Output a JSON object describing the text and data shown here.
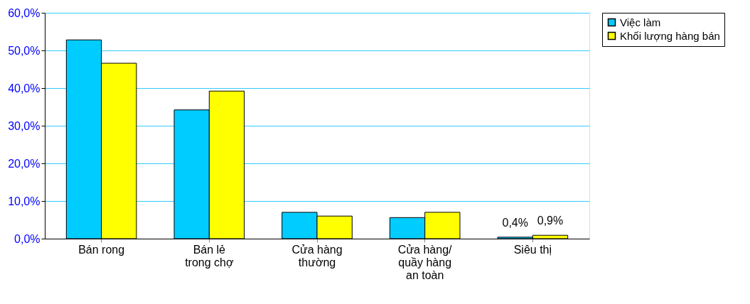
{
  "chart_data": {
    "type": "bar",
    "categories": [
      "Bán rong",
      "Bán lẻ\ntrong chợ",
      "Cửa hàng\nthường",
      "Cửa hàng/\nquầy hàng\nan toàn",
      "Siêu thị"
    ],
    "series": [
      {
        "name": "Việc làm",
        "color": "#00ccff",
        "values": [
          52.8,
          34.2,
          7.0,
          5.6,
          0.4
        ],
        "value_labels": [
          null,
          null,
          null,
          null,
          "0,4%"
        ]
      },
      {
        "name": "Khối lượng hàng bán",
        "color": "#ffff00",
        "values": [
          46.6,
          39.2,
          6.0,
          7.0,
          0.9
        ],
        "value_labels": [
          null,
          null,
          null,
          null,
          "0,9%"
        ]
      }
    ],
    "ylim": [
      0,
      60
    ],
    "yticks": [
      {
        "value": 0,
        "label": "0,0%"
      },
      {
        "value": 10,
        "label": "10,0%"
      },
      {
        "value": 20,
        "label": "20,0%"
      },
      {
        "value": 30,
        "label": "30,0%"
      },
      {
        "value": 40,
        "label": "40,0%"
      },
      {
        "value": 50,
        "label": "50,0%"
      },
      {
        "value": 60,
        "label": "60,0%"
      }
    ],
    "grid": "y",
    "legend": "right"
  }
}
